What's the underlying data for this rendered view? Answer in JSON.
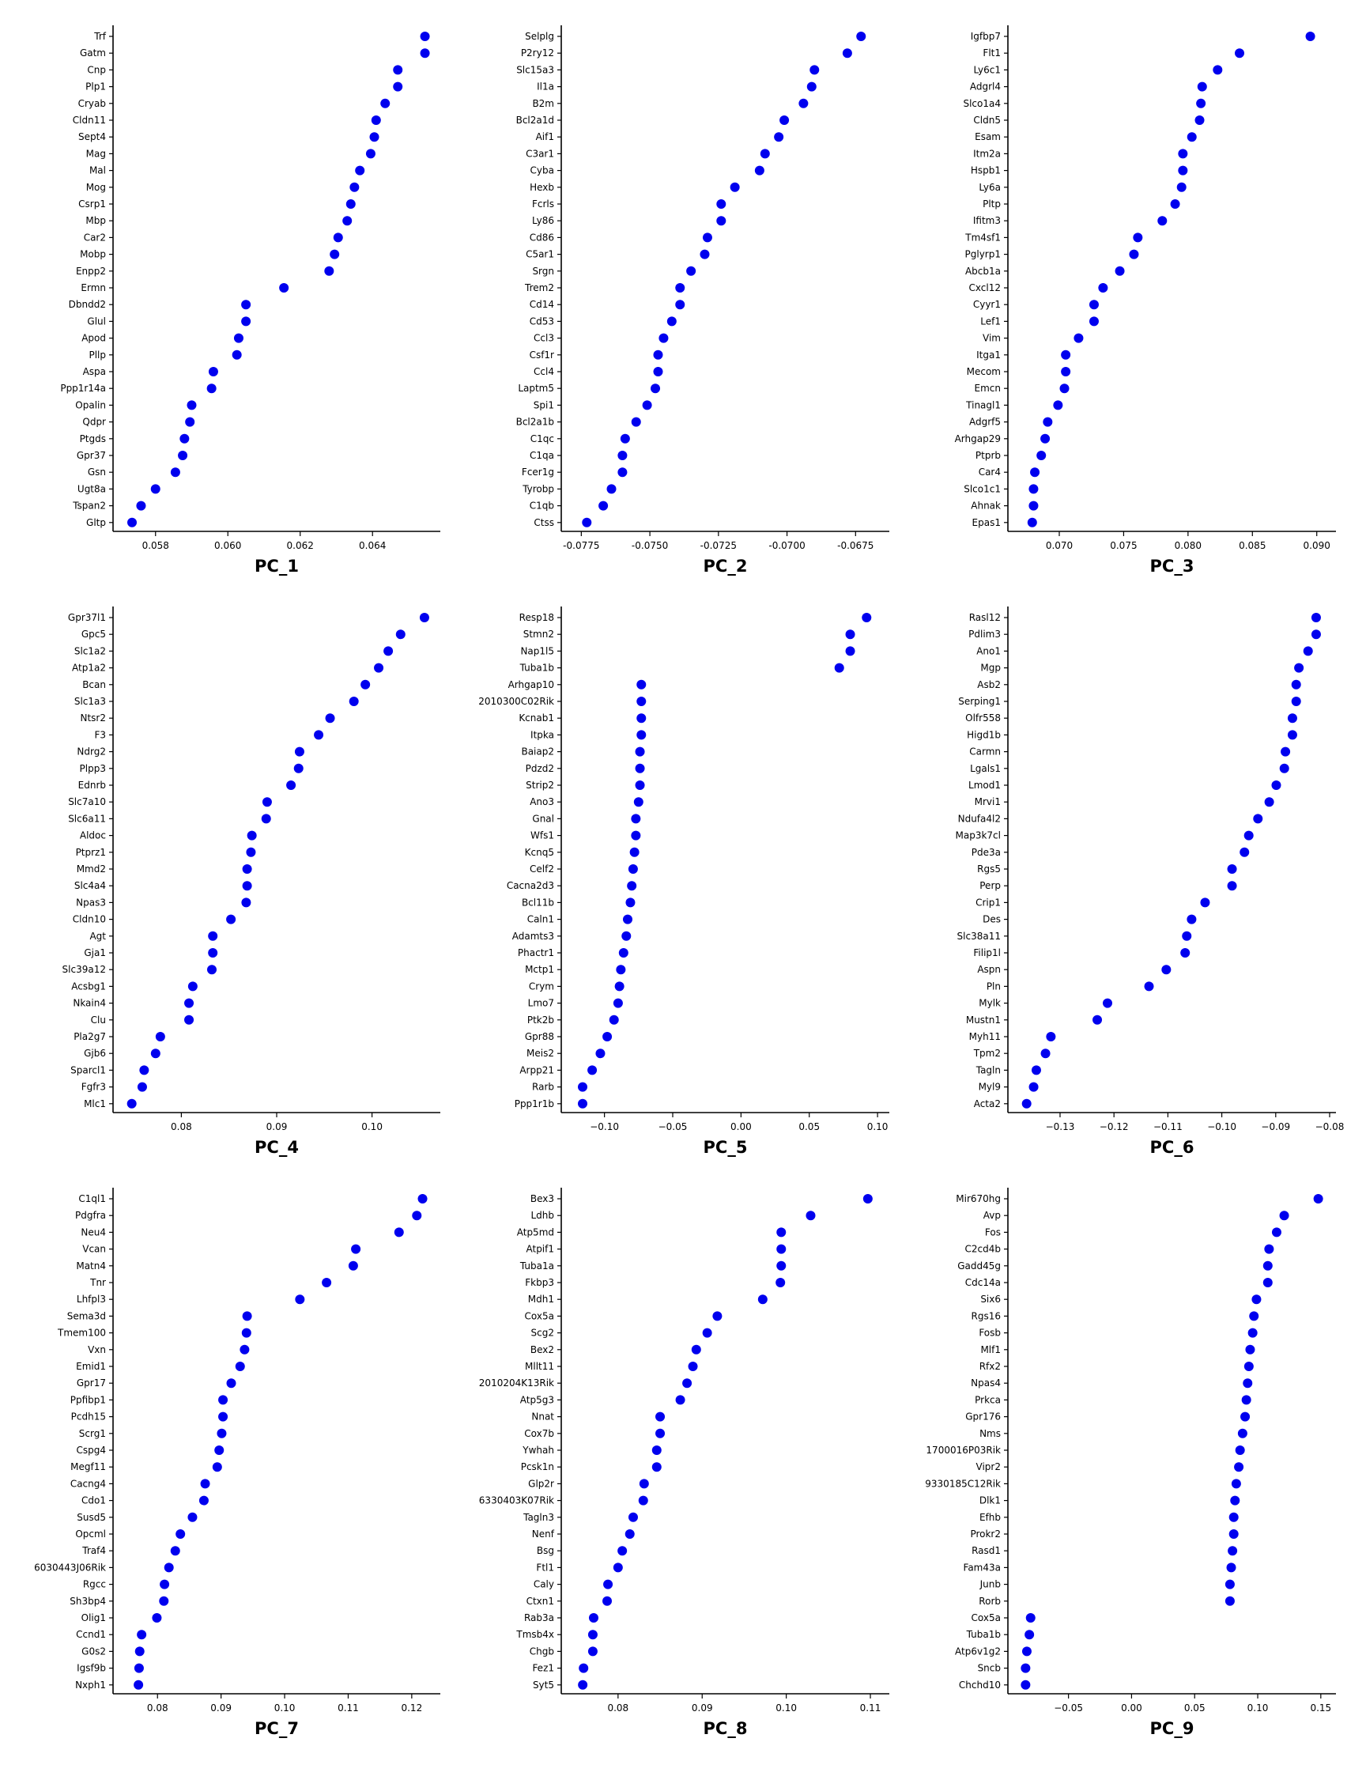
{
  "chart_data": [
    {
      "type": "scatter",
      "title": "PC_1",
      "xlim": [
        0.057,
        0.0657
      ],
      "ticks": [
        0.058,
        0.06,
        0.062,
        0.064
      ],
      "tick_labels": [
        "0.058",
        "0.060",
        "0.062",
        "0.064"
      ],
      "genes": [
        "Trf",
        "Gatm",
        "Cnp",
        "Plp1",
        "Cryab",
        "Cldn11",
        "Sept4",
        "Mag",
        "Mal",
        "Mog",
        "Csrp1",
        "Mbp",
        "Car2",
        "Mobp",
        "Enpp2",
        "Ermn",
        "Dbndd2",
        "Glul",
        "Apod",
        "Pllp",
        "Aspa",
        "Ppp1r14a",
        "Opalin",
        "Qdpr",
        "Ptgds",
        "Gpr37",
        "Gsn",
        "Ugt8a",
        "Tspan2",
        "Gltp"
      ],
      "values": [
        0.06545,
        0.06545,
        0.0647,
        0.0647,
        0.06435,
        0.0641,
        0.06405,
        0.06395,
        0.06365,
        0.0635,
        0.0634,
        0.0633,
        0.06305,
        0.06295,
        0.0628,
        0.06155,
        0.0605,
        0.0605,
        0.0603,
        0.06025,
        0.0596,
        0.05955,
        0.059,
        0.05895,
        0.0588,
        0.05875,
        0.05855,
        0.058,
        0.0576,
        0.05735
      ]
    },
    {
      "type": "scatter",
      "title": "PC_2",
      "xlim": [
        -0.078,
        -0.0665
      ],
      "ticks": [
        -0.0775,
        -0.075,
        -0.0725,
        -0.07,
        -0.0675
      ],
      "tick_labels": [
        "-0.0775",
        "-0.0750",
        "-0.0725",
        "-0.0700",
        "-0.0675"
      ],
      "genes": [
        "Selplg",
        "P2ry12",
        "Slc15a3",
        "Il1a",
        "B2m",
        "Bcl2a1d",
        "Aif1",
        "C3ar1",
        "Cyba",
        "Hexb",
        "Fcrls",
        "Ly86",
        "Cd86",
        "C5ar1",
        "Srgn",
        "Trem2",
        "Cd14",
        "Cd53",
        "Ccl3",
        "Csf1r",
        "Ccl4",
        "Laptm5",
        "Spi1",
        "Bcl2a1b",
        "C1qc",
        "C1qa",
        "Fcer1g",
        "Tyrobp",
        "C1qb",
        "Ctss"
      ],
      "values": [
        -0.0673,
        -0.0678,
        -0.069,
        -0.0691,
        -0.0694,
        -0.0701,
        -0.0703,
        -0.0708,
        -0.071,
        -0.0719,
        -0.0724,
        -0.0724,
        -0.0729,
        -0.073,
        -0.0735,
        -0.0739,
        -0.0739,
        -0.0742,
        -0.0745,
        -0.0747,
        -0.0747,
        -0.0748,
        -0.0751,
        -0.0755,
        -0.0759,
        -0.076,
        -0.076,
        -0.0764,
        -0.0767,
        -0.0773
      ]
    },
    {
      "type": "scatter",
      "title": "PC_3",
      "xlim": [
        0.0665,
        0.091
      ],
      "ticks": [
        0.07,
        0.075,
        0.08,
        0.085,
        0.09
      ],
      "tick_labels": [
        "0.070",
        "0.075",
        "0.080",
        "0.085",
        "0.090"
      ],
      "genes": [
        "Igfbp7",
        "Flt1",
        "Ly6c1",
        "Adgrl4",
        "Slco1a4",
        "Cldn5",
        "Esam",
        "Itm2a",
        "Hspb1",
        "Ly6a",
        "Pltp",
        "Ifitm3",
        "Tm4sf1",
        "Pglyrp1",
        "Abcb1a",
        "Cxcl12",
        "Cyyr1",
        "Lef1",
        "Vim",
        "Itga1",
        "Mecom",
        "Emcn",
        "Tinagl1",
        "Adgrf5",
        "Arhgap29",
        "Ptprb",
        "Car4",
        "Slco1c1",
        "Ahnak",
        "Epas1"
      ],
      "values": [
        0.0895,
        0.084,
        0.0823,
        0.0811,
        0.081,
        0.0809,
        0.0803,
        0.0796,
        0.0796,
        0.0795,
        0.079,
        0.078,
        0.0761,
        0.0758,
        0.0747,
        0.0734,
        0.0727,
        0.0727,
        0.0715,
        0.0705,
        0.0705,
        0.0704,
        0.0699,
        0.0691,
        0.0689,
        0.0686,
        0.0681,
        0.068,
        0.068,
        0.0679
      ]
    },
    {
      "type": "scatter",
      "title": "PC_4",
      "xlim": [
        0.0735,
        0.1065
      ],
      "ticks": [
        0.08,
        0.09,
        0.1
      ],
      "tick_labels": [
        "0.08",
        "0.09",
        "0.10"
      ],
      "genes": [
        "Gpr37l1",
        "Gpc5",
        "Slc1a2",
        "Atp1a2",
        "Bcan",
        "Slc1a3",
        "Ntsr2",
        "F3",
        "Ndrg2",
        "Plpp3",
        "Ednrb",
        "Slc7a10",
        "Slc6a11",
        "Aldoc",
        "Ptprz1",
        "Mmd2",
        "Slc4a4",
        "Npas3",
        "Cldn10",
        "Agt",
        "Gja1",
        "Slc39a12",
        "Acsbg1",
        "Nkain4",
        "Clu",
        "Pla2g7",
        "Gjb6",
        "Sparcl1",
        "Fgfr3",
        "Mlc1"
      ],
      "values": [
        0.1055,
        0.103,
        0.1017,
        0.1007,
        0.0993,
        0.0981,
        0.0956,
        0.0944,
        0.0924,
        0.0923,
        0.0915,
        0.089,
        0.0889,
        0.0874,
        0.0873,
        0.0869,
        0.0869,
        0.0868,
        0.0852,
        0.0833,
        0.0833,
        0.0832,
        0.0812,
        0.0808,
        0.0808,
        0.0778,
        0.0773,
        0.0761,
        0.0759,
        0.0748
      ]
    },
    {
      "type": "scatter",
      "title": "PC_5",
      "xlim": [
        -0.127,
        0.104
      ],
      "ticks": [
        -0.1,
        -0.05,
        0.0,
        0.05,
        0.1
      ],
      "tick_labels": [
        "−0.10",
        "−0.05",
        "0.00",
        "0.05",
        "0.10"
      ],
      "genes": [
        "Resp18",
        "Stmn2",
        "Nap1l5",
        "Tuba1b",
        "Arhgap10",
        "2010300C02Rik",
        "Kcnab1",
        "Itpka",
        "Baiap2",
        "Pdzd2",
        "Strip2",
        "Ano3",
        "Gnal",
        "Wfs1",
        "Kcnq5",
        "Celf2",
        "Cacna2d3",
        "Bcl11b",
        "Caln1",
        "Adamts3",
        "Phactr1",
        "Mctp1",
        "Crym",
        "Lmo7",
        "Ptk2b",
        "Gpr88",
        "Meis2",
        "Arpp21",
        "Rarb",
        "Ppp1r1b"
      ],
      "values": [
        0.092,
        0.08,
        0.08,
        0.072,
        -0.073,
        -0.073,
        -0.073,
        -0.073,
        -0.074,
        -0.074,
        -0.074,
        -0.075,
        -0.077,
        -0.077,
        -0.078,
        -0.079,
        -0.08,
        -0.081,
        -0.083,
        -0.084,
        -0.086,
        -0.088,
        -0.089,
        -0.09,
        -0.093,
        -0.098,
        -0.103,
        -0.109,
        -0.116,
        -0.116
      ]
    },
    {
      "type": "scatter",
      "title": "PC_6",
      "xlim": [
        -0.1385,
        -0.08
      ],
      "ticks": [
        -0.13,
        -0.12,
        -0.11,
        -0.1,
        -0.09,
        -0.08
      ],
      "tick_labels": [
        "−0.13",
        "−0.12",
        "−0.11",
        "−0.10",
        "−0.09",
        "−0.08"
      ],
      "genes": [
        "Rasl12",
        "Pdlim3",
        "Ano1",
        "Mgp",
        "Asb2",
        "Serping1",
        "Olfr558",
        "Higd1b",
        "Carmn",
        "Lgals1",
        "Lmod1",
        "Mrvi1",
        "Ndufa4l2",
        "Map3k7cl",
        "Pde3a",
        "Rgs5",
        "Perp",
        "Crip1",
        "Des",
        "Slc38a11",
        "Filip1l",
        "Aspn",
        "Pln",
        "Mylk",
        "Mustn1",
        "Myh11",
        "Tpm2",
        "Tagln",
        "Myl9",
        "Acta2"
      ],
      "values": [
        -0.0825,
        -0.0825,
        -0.084,
        -0.0857,
        -0.0862,
        -0.0862,
        -0.0869,
        -0.0869,
        -0.0882,
        -0.0884,
        -0.0899,
        -0.0912,
        -0.0933,
        -0.095,
        -0.0958,
        -0.0981,
        -0.0981,
        -0.1031,
        -0.1056,
        -0.1065,
        -0.1068,
        -0.1103,
        -0.1135,
        -0.1212,
        -0.1231,
        -0.1317,
        -0.1327,
        -0.1344,
        -0.1349,
        -0.1362
      ]
    },
    {
      "type": "scatter",
      "title": "PC_7",
      "xlim": [
        0.074,
        0.1235
      ],
      "ticks": [
        0.08,
        0.09,
        0.1,
        0.11,
        0.12
      ],
      "tick_labels": [
        "0.08",
        "0.09",
        "0.10",
        "0.11",
        "0.12"
      ],
      "genes": [
        "C1ql1",
        "Pdgfra",
        "Neu4",
        "Vcan",
        "Matn4",
        "Tnr",
        "Lhfpl3",
        "Sema3d",
        "Tmem100",
        "Vxn",
        "Emid1",
        "Gpr17",
        "Ppfibp1",
        "Pcdh15",
        "Scrg1",
        "Cspg4",
        "Megf11",
        "Cacng4",
        "Cdo1",
        "Susd5",
        "Opcml",
        "Traf4",
        "6030443J06Rik",
        "Rgcc",
        "Sh3bp4",
        "Olig1",
        "Ccnd1",
        "G0s2",
        "Igsf9b",
        "Nxph1"
      ],
      "values": [
        0.1217,
        0.1208,
        0.118,
        0.1112,
        0.1108,
        0.1066,
        0.1024,
        0.0941,
        0.094,
        0.0937,
        0.093,
        0.0916,
        0.0903,
        0.0903,
        0.0901,
        0.0897,
        0.0894,
        0.0875,
        0.0873,
        0.0855,
        0.0836,
        0.0828,
        0.0818,
        0.0811,
        0.081,
        0.0799,
        0.0775,
        0.0772,
        0.0771,
        0.077
      ]
    },
    {
      "type": "scatter",
      "title": "PC_8",
      "xlim": [
        0.074,
        0.1115
      ],
      "ticks": [
        0.08,
        0.09,
        0.1,
        0.11
      ],
      "tick_labels": [
        "0.08",
        "0.09",
        "0.10",
        "0.11"
      ],
      "genes": [
        "Bex3",
        "Ldhb",
        "Atp5md",
        "Atpif1",
        "Tuba1a",
        "Fkbp3",
        "Mdh1",
        "Cox5a",
        "Scg2",
        "Bex2",
        "Mllt11",
        "2010204K13Rik",
        "Atp5g3",
        "Nnat",
        "Cox7b",
        "Ywhah",
        "Pcsk1n",
        "Glp2r",
        "6330403K07Rik",
        "Tagln3",
        "Nenf",
        "Bsg",
        "Ftl1",
        "Caly",
        "Ctxn1",
        "Rab3a",
        "Tmsb4x",
        "Chgb",
        "Fez1",
        "Syt5"
      ],
      "values": [
        0.1097,
        0.1029,
        0.0994,
        0.0994,
        0.0994,
        0.0993,
        0.0972,
        0.0918,
        0.0906,
        0.0893,
        0.0889,
        0.0882,
        0.0874,
        0.085,
        0.085,
        0.0846,
        0.0846,
        0.0831,
        0.083,
        0.0818,
        0.0814,
        0.0805,
        0.08,
        0.0788,
        0.0787,
        0.0771,
        0.077,
        0.077,
        0.0759,
        0.0758
      ]
    },
    {
      "type": "scatter",
      "title": "PC_9",
      "xlim": [
        -0.093,
        0.157
      ],
      "ticks": [
        -0.05,
        0.0,
        0.05,
        0.1,
        0.15
      ],
      "tick_labels": [
        "−0.05",
        "0.00",
        "0.05",
        "0.10",
        "0.15"
      ],
      "genes": [
        "Mir670hg",
        "Avp",
        "Fos",
        "C2cd4b",
        "Gadd45g",
        "Cdc14a",
        "Six6",
        "Rgs16",
        "Fosb",
        "Mlf1",
        "Rfx2",
        "Npas4",
        "Prkca",
        "Gpr176",
        "Nms",
        "1700016P03Rik",
        "Vipr2",
        "9330185C12Rik",
        "Dlk1",
        "Efhb",
        "Prokr2",
        "Rasd1",
        "Fam43a",
        "Junb",
        "Rorb",
        "Cox5a",
        "Tuba1b",
        "Atp6v1g2",
        "Sncb",
        "Chchd10"
      ],
      "values": [
        0.148,
        0.121,
        0.115,
        0.109,
        0.108,
        0.108,
        0.099,
        0.097,
        0.096,
        0.094,
        0.093,
        0.092,
        0.091,
        0.09,
        0.088,
        0.086,
        0.085,
        0.083,
        0.082,
        0.081,
        0.081,
        0.08,
        0.079,
        0.078,
        0.078,
        -0.08,
        -0.081,
        -0.083,
        -0.084,
        -0.084
      ]
    }
  ],
  "colors": {
    "point": "#0000ee",
    "axis": "#000000",
    "text": "#000000"
  }
}
